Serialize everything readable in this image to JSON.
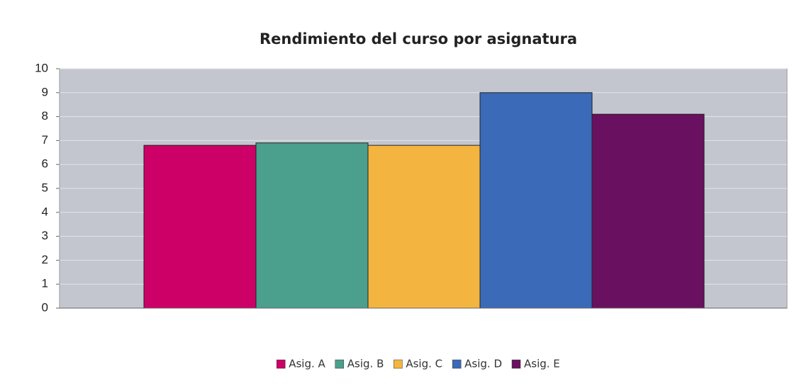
{
  "chart_data": {
    "type": "bar",
    "title": "Rendimiento del curso por asignatura",
    "series": [
      {
        "name": "Asig. A",
        "color": "#cc0066",
        "values": [
          6.8
        ]
      },
      {
        "name": "Asig. B",
        "color": "#4aa08c",
        "values": [
          6.9
        ]
      },
      {
        "name": "Asig. C",
        "color": "#f4b540",
        "values": [
          6.8
        ]
      },
      {
        "name": "Asig. D",
        "color": "#3a6ab8",
        "values": [
          9.0
        ]
      },
      {
        "name": "Asig. E",
        "color": "#6a1060",
        "values": [
          8.1
        ]
      }
    ],
    "ylim": [
      0,
      10
    ],
    "yticks": [
      0,
      1,
      2,
      3,
      4,
      5,
      6,
      7,
      8,
      9,
      10
    ],
    "grid": true,
    "legend": "bottom"
  }
}
